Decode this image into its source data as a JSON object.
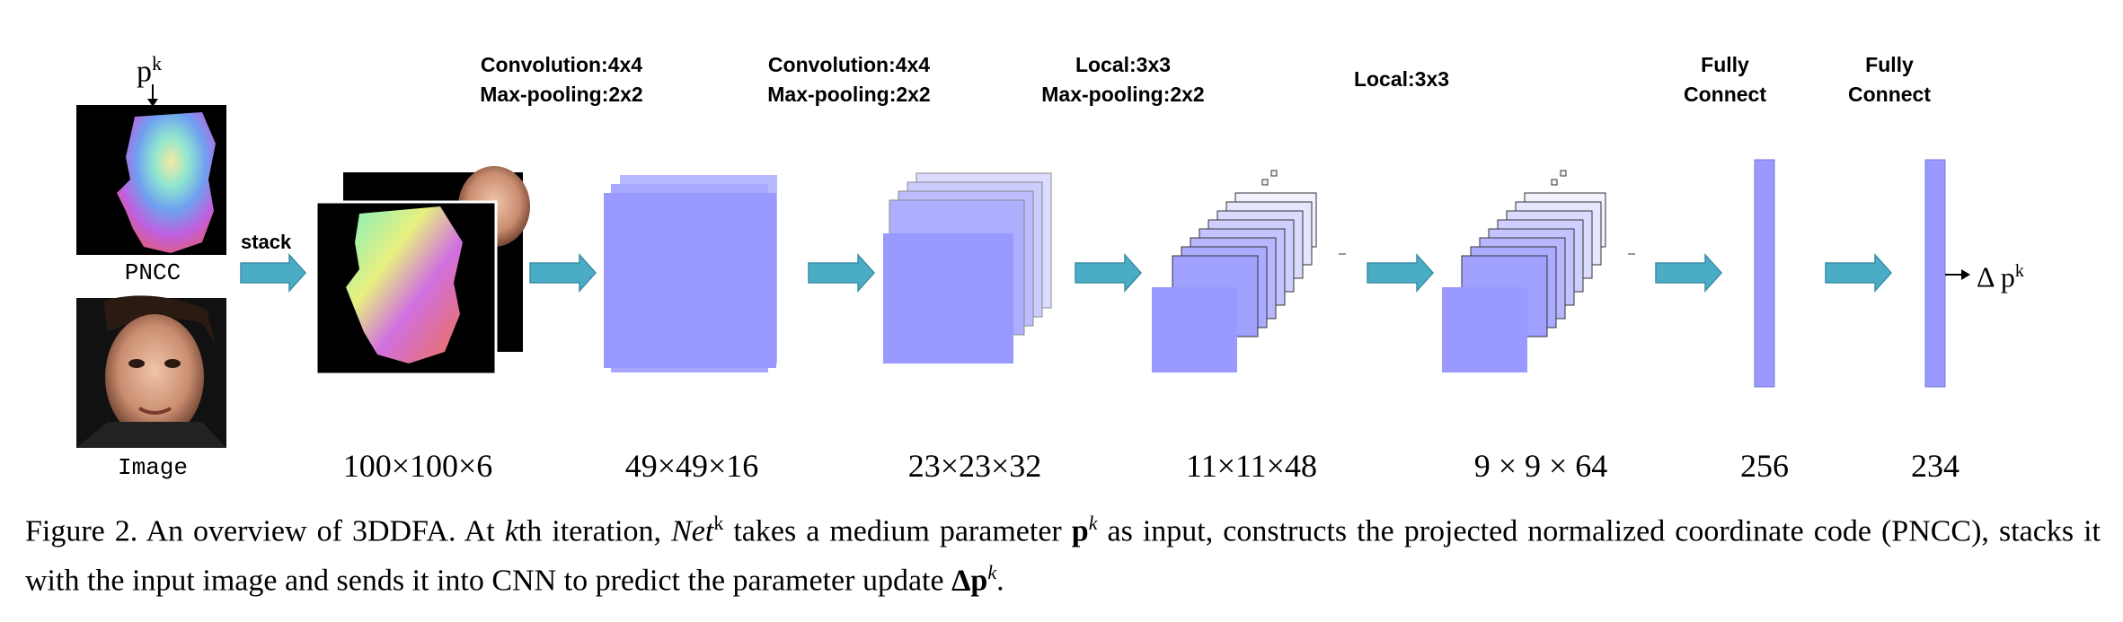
{
  "inputs": {
    "pk_label_base": "p",
    "pk_label_sup": "k",
    "pncc_label": "PNCC",
    "image_label": "Image",
    "stack_label": "stack"
  },
  "layers": [
    {
      "line1": "Convolution:4x4",
      "line2": "Max-pooling:2x2"
    },
    {
      "line1": "Convolution:4x4",
      "line2": "Max-pooling:2x2"
    },
    {
      "line1": "Local:3x3",
      "line2": "Max-pooling:2x2"
    },
    {
      "line1": "Local:3x3",
      "line2": ""
    },
    {
      "line1": "Fully",
      "line2": "Connect"
    },
    {
      "line1": "Fully",
      "line2": "Connect"
    }
  ],
  "dimensions": [
    "100×100×6",
    "49×49×16",
    "23×23×32",
    "11×11×48",
    "9 × 9 × 64",
    "256",
    "234"
  ],
  "output": {
    "prefix": "Δ p",
    "sup": "k"
  },
  "caption": {
    "fig": "Figure 2. An overview of 3DDFA. At ",
    "k": "k",
    "t1": "th iteration, ",
    "net": "Net",
    "netsup": "k",
    "t2": " takes a medium parameter ",
    "p": "p",
    "psup": "k",
    "t3": " as input, constructs the projected normalized coordinate code (PNCC), stacks it with the input image and sends it into CNN to predict the parameter update ",
    "dp": "Δp",
    "dpsup": "k",
    "t4": "."
  },
  "colors": {
    "block": "#9999ff",
    "arrow": "#4bacc6",
    "arrow_edge": "#3a8fa6",
    "bg_face": "#000000"
  }
}
